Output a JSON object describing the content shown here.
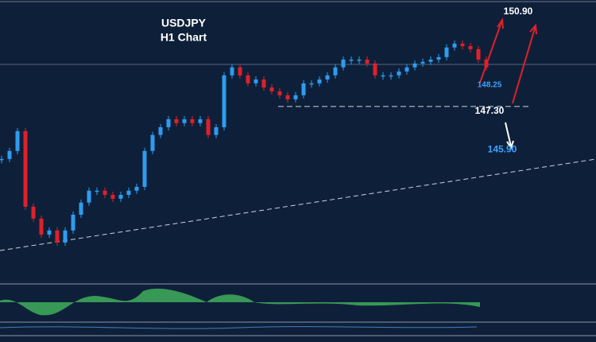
{
  "chart_data": {
    "type": "candlestick",
    "title": "USDJPY",
    "subtitle": "H1 Chart",
    "values": [
      145.57,
      145.86,
      146.58,
      143.84,
      143.41,
      142.83,
      142.98,
      142.54,
      142.98,
      143.55,
      143.99,
      144.42,
      144.42,
      144.27,
      144.13,
      144.27,
      144.42,
      144.56,
      145.86,
      146.44,
      146.72,
      147.01,
      146.87,
      147.01,
      146.87,
      147.01,
      146.44,
      146.72,
      148.6,
      148.89,
      148.6,
      148.31,
      148.45,
      148.16,
      148.02,
      147.88,
      147.73,
      147.88,
      148.31,
      148.31,
      148.45,
      148.6,
      148.89,
      149.17,
      149.17,
      149.17,
      149.03,
      148.6,
      148.6,
      148.6,
      148.74,
      148.89,
      149.03,
      149.09,
      149.17,
      149.26,
      149.61,
      149.75,
      149.66,
      149.55,
      149.17,
      148.89
    ],
    "up_color": "#2e9cf0",
    "down_color": "#e0202a",
    "ylim": [
      141.1,
      151.33
    ],
    "annotations": [
      {
        "value": 150.9,
        "label": "150.90",
        "color": "#ffffff"
      },
      {
        "value": 148.25,
        "label": "148.25",
        "color": "#3fa3ff"
      },
      {
        "value": 147.3,
        "label": "147.30",
        "color": "#ffffff"
      },
      {
        "value": 145.9,
        "label": "145.90",
        "color": "#3fa3ff"
      }
    ]
  }
}
